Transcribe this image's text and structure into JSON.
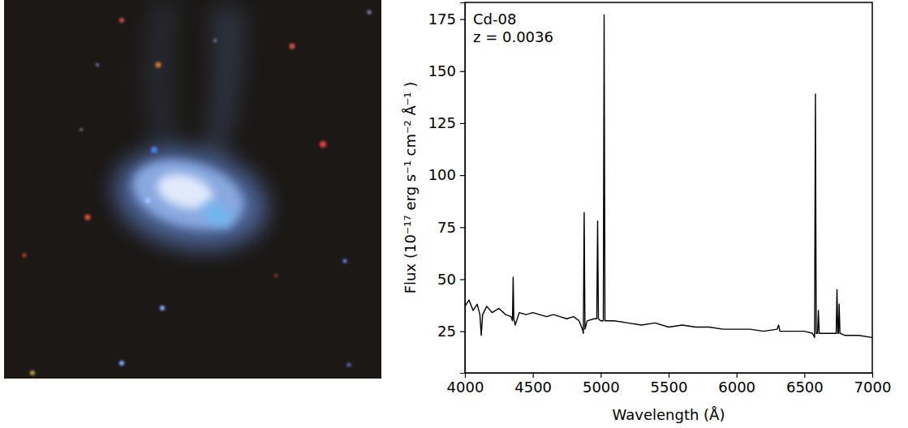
{
  "chart_data": {
    "type": "line",
    "annotations": [
      "Cd-08",
      "z = 0.0036"
    ],
    "x_label": "Wavelength (Å)",
    "y_label": "Flux (10⁻¹⁷ erg s⁻¹ cm⁻² Å⁻¹ )",
    "xlim": [
      4000,
      7000
    ],
    "ylim": [
      5,
      183
    ],
    "xticks": [
      4000,
      4500,
      5000,
      5500,
      6000,
      6500,
      7000
    ],
    "yticks": [
      25,
      50,
      75,
      100,
      125,
      150,
      175
    ],
    "color": "#000000",
    "x": [
      4000,
      4030,
      4060,
      4090,
      4110,
      4120,
      4130,
      4160,
      4200,
      4250,
      4300,
      4340,
      4350,
      4355,
      4360,
      4370,
      4400,
      4450,
      4500,
      4550,
      4600,
      4650,
      4700,
      4750,
      4800,
      4840,
      4865,
      4872,
      4878,
      4884,
      4900,
      4950,
      4971,
      4977,
      4983,
      5000,
      5019,
      5025,
      5031,
      5100,
      5200,
      5300,
      5400,
      5500,
      5600,
      5700,
      5800,
      5900,
      6000,
      6100,
      6200,
      6300,
      6310,
      6320,
      6400,
      6500,
      6560,
      6575,
      6581,
      6587,
      6597,
      6603,
      6609,
      6700,
      6734,
      6740,
      6746,
      6751,
      6756,
      6762,
      6800,
      6900,
      7000
    ],
    "values": [
      37,
      40,
      35,
      38,
      33,
      23,
      33,
      37,
      34,
      36,
      33,
      32,
      30,
      51,
      31,
      28,
      34,
      33,
      34,
      33,
      32,
      33,
      32,
      31,
      32,
      30,
      26,
      24,
      82,
      26,
      30,
      31,
      31,
      78,
      31,
      30,
      30,
      177,
      30,
      30,
      29,
      28,
      29,
      27,
      28,
      27,
      27,
      26,
      26,
      26,
      25,
      26,
      28,
      25,
      25,
      25,
      24,
      22,
      139,
      24,
      24,
      35,
      24,
      24,
      24,
      45,
      24,
      24,
      38,
      24,
      23,
      23,
      22
    ]
  }
}
